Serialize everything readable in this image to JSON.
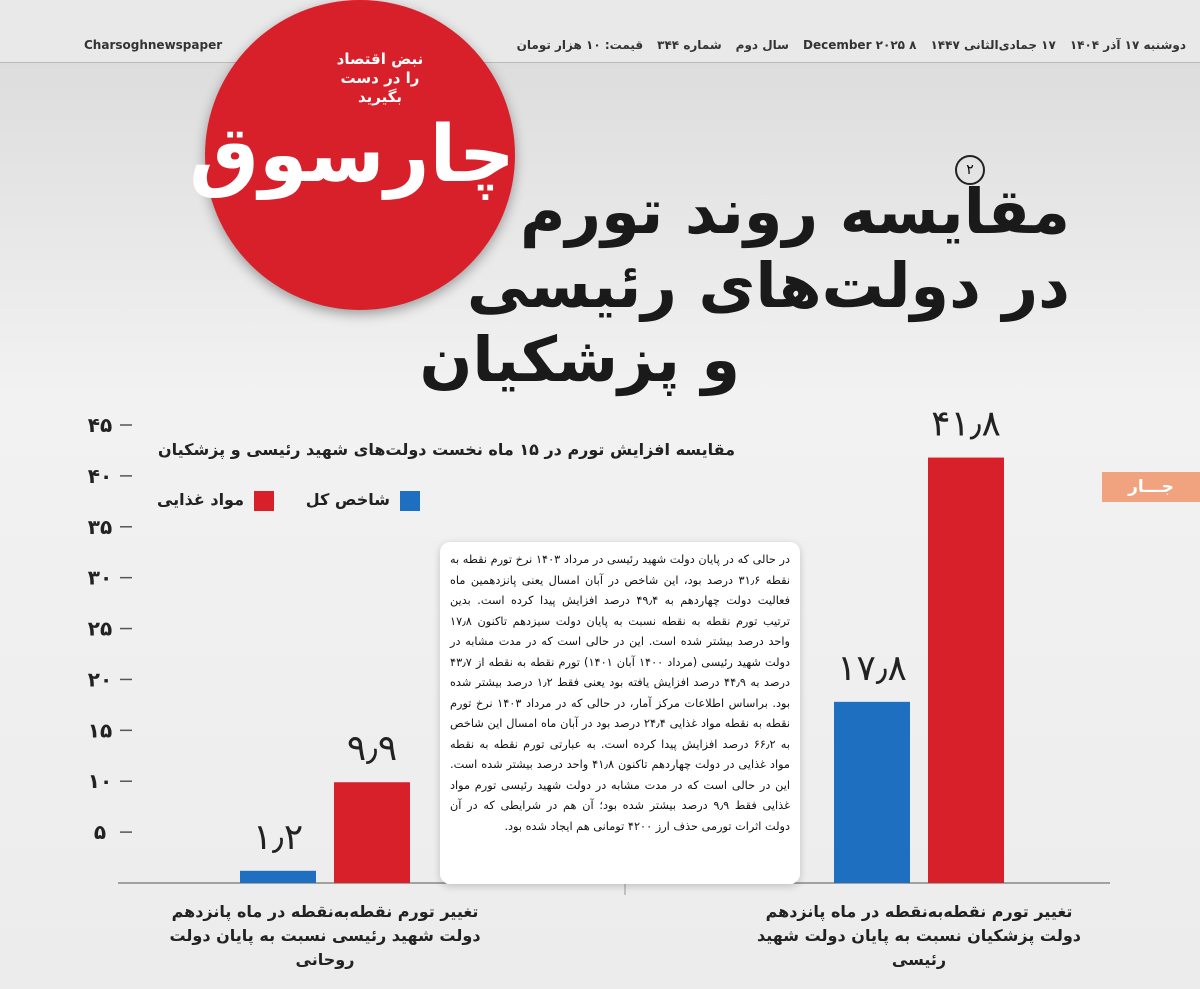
{
  "header": {
    "items": [
      "دوشنبه ۱۷ آذر ۱۴۰۴",
      "۱۷ جمادی‌الثانی ۱۴۴۷",
      "۸ December ۲۰۲۵",
      "سال دوم",
      "شماره ۳۴۴",
      "قیمت: ۱۰ هزار تومان"
    ],
    "handle": "Charsoghnewspaper"
  },
  "logo": {
    "name": "چارسوق",
    "tagline": [
      "نبض اقتصاد",
      "را در دست بگیرید"
    ]
  },
  "title": {
    "page_tag": "۲",
    "lines": [
      "مقایسه روند تورم",
      "در دولت‌های رئیسی",
      "و پزشکیان"
    ]
  },
  "section_tab": "جـــار",
  "body_text": "در حالی که در پایان دولت شهید رئیسی در مرداد ۱۴۰۳ نرخ تورم نقطه به نقطه ۳۱٫۶ درصد بود، این شاخص در آبان امسال یعنی پانزدهمین ماه فعالیت دولت چهاردهم به ۴۹٫۴ درصد افزایش پیدا کرده است. بدین ترتیب تورم نقطه به نقطه نسبت به پایان دولت سیزدهم تاکنون ۱۷٫۸ واحد درصد بیشتر شده است. این در حالی است که در مدت مشابه در دولت شهید رئیسی (مرداد ۱۴۰۰ آبان ۱۴۰۱) تورم نقطه به نقطه از ۴۳٫۷ درصد به ۴۴٫۹ درصد افزایش یافته بود یعنی فقط ۱٫۲ درصد بیشتر شده بود. براساس اطلاعات مرکز آمار، در حالی که در مرداد ۱۴۰۳ نرخ تورم نقطه به نقطه مواد غذایی ۲۴٫۴ درصد بود در آبان ماه امسال این شاخص به ۶۶٫۲ درصد افزایش پیدا کرده است. به عبارتی تورم نقطه به نقطه مواد غذایی در دولت چهاردهم تاکنون ۴۱٫۸ واحد درصد بیشتر شده است. این در حالی است که در مدت مشابه در دولت شهید رئیسی تورم مواد غذایی فقط ۹٫۹ درصد بیشتر شده بود؛ آن هم در شرایطی که در آن دولت اثرات تورمی حذف ارز ۴۲۰۰ تومانی هم ایجاد شده بود.",
  "chart_data": {
    "type": "bar",
    "title": "مقایسه افزایش تورم در ۱۵ ماه نخست دولت‌های شهید رئیسی و پزشکیان",
    "categories": [
      "تغییر تورم نقطه‌به‌نقطه در ماه پانزدهم دولت شهید رئیسی نسبت به پایان دولت روحانی",
      "تغییر تورم نقطه‌به‌نقطه در ماه پانزدهم دولت پزشکیان نسبت به پایان دولت شهید رئیسی"
    ],
    "series": [
      {
        "name": "شاخص کل",
        "color": "#1f6fc0",
        "values": [
          1.2,
          17.8
        ],
        "value_labels": [
          "۱٫۲",
          "۱۷٫۸"
        ]
      },
      {
        "name": "مواد غذایی",
        "color": "#d8202b",
        "values": [
          9.9,
          41.8
        ],
        "value_labels": [
          "۹٫۹",
          "۴۱٫۸"
        ]
      }
    ],
    "ylim": [
      0,
      45
    ],
    "yticks": [
      {
        "value": 5,
        "label": "۵"
      },
      {
        "value": 10,
        "label": "۱۰"
      },
      {
        "value": 15,
        "label": "۱۵"
      },
      {
        "value": 20,
        "label": "۲۰"
      },
      {
        "value": 25,
        "label": "۲۵"
      },
      {
        "value": 30,
        "label": "۳۰"
      },
      {
        "value": 35,
        "label": "۳۵"
      },
      {
        "value": 40,
        "label": "۴۰"
      },
      {
        "value": 45,
        "label": "۴۵"
      }
    ]
  }
}
